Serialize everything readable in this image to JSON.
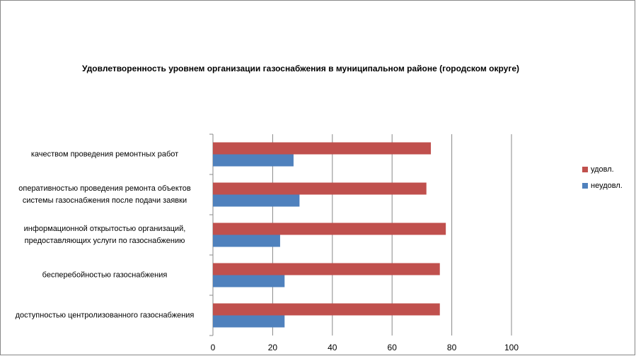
{
  "chart_data": {
    "type": "hbar",
    "title": "Удовлетворенность уровнем организации газоснабжения в муниципальном районе (городском округе)",
    "categories": [
      "качеством проведения ремонтных работ",
      "оперативностью проведения ремонта объектов\nсистемы газоснабжения после подачи заявки",
      "информационной открытостью организаций,\nпредоставляющих услуги по газоснабжению",
      "бесперебойностью газоснабжения",
      "доступностью центролизованного газоснабжения"
    ],
    "series": [
      {
        "name": "удовл.",
        "color": "#c0504d",
        "values": [
          73,
          71.5,
          78,
          76,
          76
        ]
      },
      {
        "name": "неудовл.",
        "color": "#4f81bd",
        "values": [
          27,
          29,
          22.5,
          24,
          24
        ]
      }
    ],
    "xlim": [
      0,
      100
    ],
    "xticks": [
      0,
      20,
      40,
      60,
      80,
      100
    ],
    "grid": true,
    "legend": "right"
  }
}
